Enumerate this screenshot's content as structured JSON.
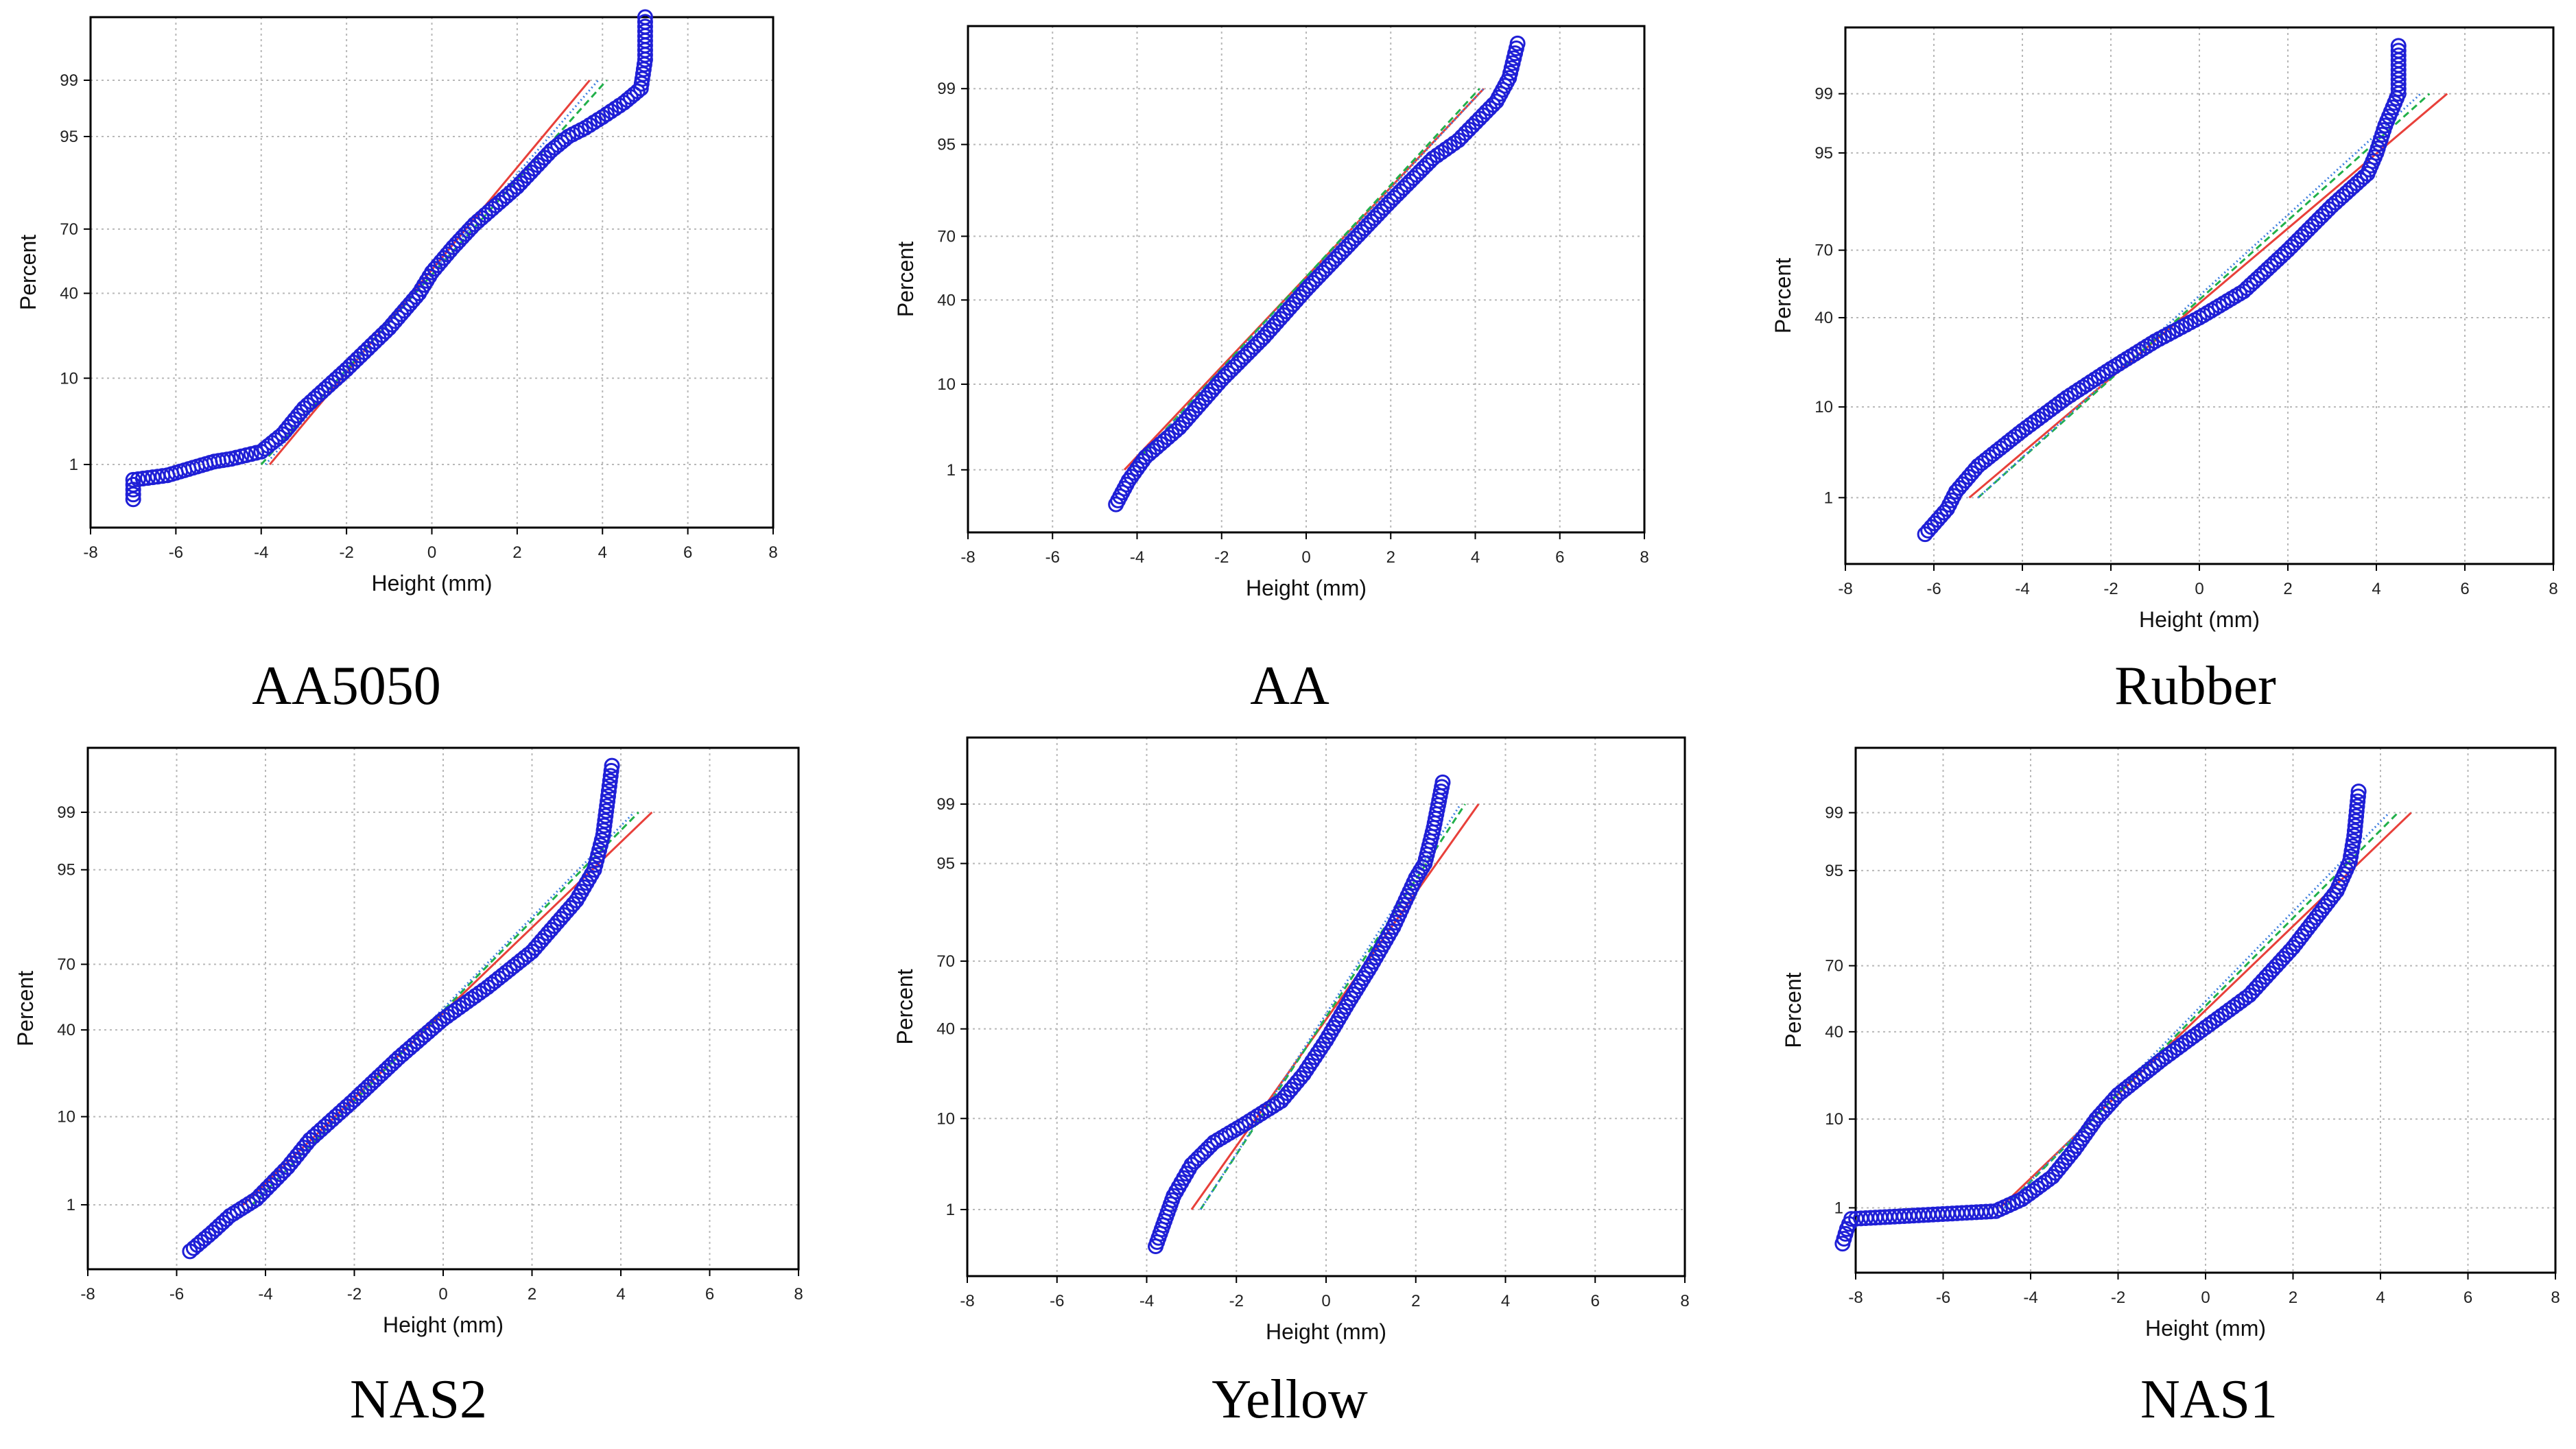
{
  "figure": {
    "panels": [
      {
        "caption": "AA5050"
      },
      {
        "caption": "AA"
      },
      {
        "caption": "Rubber"
      },
      {
        "caption": "NAS2"
      },
      {
        "caption": "Yellow"
      },
      {
        "caption": "NAS1"
      }
    ]
  },
  "colors": {
    "points": "#1f1fd6",
    "fit_red": "#e8403a",
    "fit_green": "#21b04a",
    "fit_blue": "#3f7fe0",
    "grid": "#b8b8b8",
    "frame": "#000000"
  },
  "chart_data": [
    {
      "type": "scatter",
      "title": "AA5050",
      "xlabel": "Height (mm)",
      "ylabel": "Percent",
      "xlim": [
        -8,
        8
      ],
      "xticks": [
        -8,
        -6,
        -4,
        -2,
        0,
        2,
        4,
        6,
        8
      ],
      "yticks": [
        1,
        10,
        40,
        70,
        95,
        99
      ],
      "grid": true,
      "points": [
        [
          -7.0,
          0.3
        ],
        [
          -7.0,
          0.6
        ],
        [
          -6.2,
          0.7
        ],
        [
          -5.6,
          0.9
        ],
        [
          -5.1,
          1.1
        ],
        [
          -4.7,
          1.2
        ],
        [
          -4.0,
          1.5
        ],
        [
          -3.5,
          2.5
        ],
        [
          -3,
          5
        ],
        [
          -2,
          12
        ],
        [
          -1,
          25
        ],
        [
          -0.3,
          40
        ],
        [
          0,
          50
        ],
        [
          0.5,
          62
        ],
        [
          1,
          72
        ],
        [
          2,
          85
        ],
        [
          2.8,
          93
        ],
        [
          3.2,
          95
        ],
        [
          3.6,
          96
        ],
        [
          4.0,
          97
        ],
        [
          4.5,
          98
        ],
        [
          4.9,
          98.7
        ],
        [
          5.0,
          99.5
        ],
        [
          5.0,
          99.9
        ]
      ],
      "fit_lines": [
        {
          "color": "red",
          "x": [
            -3.8,
            3.7
          ],
          "p": [
            1,
            99
          ]
        },
        {
          "color": "green",
          "x": [
            -4.0,
            4.1
          ],
          "p": [
            1,
            99
          ]
        },
        {
          "color": "blue",
          "x": [
            -3.9,
            3.9
          ],
          "p": [
            1,
            99
          ]
        }
      ]
    },
    {
      "type": "scatter",
      "title": "AA",
      "xlabel": "Height (mm)",
      "ylabel": "Percent",
      "xlim": [
        -8,
        8
      ],
      "xticks": [
        -8,
        -6,
        -4,
        -2,
        0,
        2,
        4,
        6,
        8
      ],
      "yticks": [
        1,
        10,
        40,
        70,
        95,
        99
      ],
      "grid": true,
      "points": [
        [
          -4.5,
          0.3
        ],
        [
          -4.2,
          0.7
        ],
        [
          -3.8,
          1.5
        ],
        [
          -3.0,
          3.5
        ],
        [
          -2,
          11
        ],
        [
          -1,
          24
        ],
        [
          0,
          45
        ],
        [
          1,
          66
        ],
        [
          2,
          83
        ],
        [
          3,
          93
        ],
        [
          3.6,
          95.5
        ],
        [
          4.1,
          97.5
        ],
        [
          4.5,
          98.5
        ],
        [
          4.8,
          99.3
        ],
        [
          5.0,
          99.8
        ]
      ],
      "fit_lines": [
        {
          "color": "red",
          "x": [
            -4.3,
            4.2
          ],
          "p": [
            1,
            99
          ]
        },
        {
          "color": "green",
          "x": [
            -4.2,
            4.1
          ],
          "p": [
            1,
            99
          ]
        },
        {
          "color": "blue",
          "x": [
            -4.2,
            4.2
          ],
          "p": [
            1,
            99
          ]
        }
      ]
    },
    {
      "type": "scatter",
      "title": "Rubber",
      "xlabel": "Height (mm)",
      "ylabel": "Percent",
      "xlim": [
        -8,
        8
      ],
      "xticks": [
        -8,
        -6,
        -4,
        -2,
        0,
        2,
        4,
        6,
        8
      ],
      "yticks": [
        1,
        10,
        40,
        70,
        95,
        99
      ],
      "grid": true,
      "points": [
        [
          -6.2,
          0.3
        ],
        [
          -5.7,
          0.7
        ],
        [
          -5.5,
          1.2
        ],
        [
          -5,
          2.5
        ],
        [
          -4,
          6
        ],
        [
          -3,
          12
        ],
        [
          -2,
          20
        ],
        [
          -1,
          30
        ],
        [
          0,
          40
        ],
        [
          1,
          52
        ],
        [
          2,
          70
        ],
        [
          3,
          85
        ],
        [
          3.8,
          92
        ],
        [
          4.0,
          95
        ],
        [
          4.2,
          97.5
        ],
        [
          4.5,
          99
        ],
        [
          4.5,
          99.8
        ]
      ],
      "fit_lines": [
        {
          "color": "red",
          "x": [
            -5.2,
            5.6
          ],
          "p": [
            1,
            99
          ]
        },
        {
          "color": "green",
          "x": [
            -5.0,
            5.2
          ],
          "p": [
            1,
            99
          ]
        },
        {
          "color": "blue",
          "x": [
            -5.0,
            5.0
          ],
          "p": [
            1,
            99
          ]
        }
      ]
    },
    {
      "type": "scatter",
      "title": "NAS2",
      "xlabel": "Height (mm)",
      "ylabel": "Percent",
      "xlim": [
        -8,
        8
      ],
      "xticks": [
        -8,
        -6,
        -4,
        -2,
        0,
        2,
        4,
        6,
        8
      ],
      "yticks": [
        1,
        10,
        40,
        70,
        95,
        99
      ],
      "grid": true,
      "points": [
        [
          -5.7,
          0.2
        ],
        [
          -5.2,
          0.4
        ],
        [
          -4.8,
          0.7
        ],
        [
          -4.2,
          1.2
        ],
        [
          -3.5,
          3
        ],
        [
          -3,
          6
        ],
        [
          -2,
          14
        ],
        [
          -1,
          28
        ],
        [
          0,
          45
        ],
        [
          1,
          60
        ],
        [
          2,
          75
        ],
        [
          3,
          90
        ],
        [
          3.4,
          95
        ],
        [
          3.6,
          98
        ],
        [
          3.7,
          99.3
        ],
        [
          3.8,
          99.8
        ]
      ],
      "fit_lines": [
        {
          "color": "red",
          "x": [
            -4.5,
            4.7
          ],
          "p": [
            1,
            99
          ]
        },
        {
          "color": "green",
          "x": [
            -4.3,
            4.4
          ],
          "p": [
            1,
            99
          ]
        },
        {
          "color": "blue",
          "x": [
            -4.3,
            4.3
          ],
          "p": [
            1,
            99
          ]
        }
      ]
    },
    {
      "type": "scatter",
      "title": "Yellow",
      "xlabel": "Height (mm)",
      "ylabel": "Percent",
      "xlim": [
        -8,
        8
      ],
      "xticks": [
        -8,
        -6,
        -4,
        -2,
        0,
        2,
        4,
        6,
        8
      ],
      "yticks": [
        1,
        10,
        40,
        70,
        95,
        99
      ],
      "grid": true,
      "points": [
        [
          -3.8,
          0.3
        ],
        [
          -3.6,
          0.7
        ],
        [
          -3.4,
          1.5
        ],
        [
          -3.0,
          3.5
        ],
        [
          -2.5,
          6
        ],
        [
          -1.8,
          9
        ],
        [
          -1.0,
          14
        ],
        [
          -0.5,
          22
        ],
        [
          0,
          35
        ],
        [
          0.5,
          52
        ],
        [
          1,
          68
        ],
        [
          1.5,
          82
        ],
        [
          2,
          93
        ],
        [
          2.2,
          95
        ],
        [
          2.4,
          98
        ],
        [
          2.6,
          99.5
        ]
      ],
      "fit_lines": [
        {
          "color": "red",
          "x": [
            -3.0,
            3.4
          ],
          "p": [
            1,
            99
          ]
        },
        {
          "color": "green",
          "x": [
            -2.8,
            3.1
          ],
          "p": [
            1,
            99
          ]
        },
        {
          "color": "blue",
          "x": [
            -2.8,
            3.0
          ],
          "p": [
            1,
            99
          ]
        }
      ]
    },
    {
      "type": "scatter",
      "title": "NAS1",
      "xlabel": "Height (mm)",
      "ylabel": "Percent",
      "xlim": [
        -8,
        8
      ],
      "xticks": [
        -8,
        -6,
        -4,
        -2,
        0,
        2,
        4,
        6,
        8
      ],
      "yticks": [
        1,
        10,
        40,
        70,
        95,
        99
      ],
      "grid": true,
      "points": [
        [
          -8.3,
          0.3
        ],
        [
          -8.2,
          0.5
        ],
        [
          -8.1,
          0.7
        ],
        [
          -4.8,
          0.9
        ],
        [
          -4.2,
          1.3
        ],
        [
          -3.5,
          2.5
        ],
        [
          -3.0,
          5
        ],
        [
          -2.5,
          10
        ],
        [
          -2,
          16
        ],
        [
          -1,
          28
        ],
        [
          0,
          42
        ],
        [
          1,
          57
        ],
        [
          2,
          77
        ],
        [
          3,
          92
        ],
        [
          3.3,
          96
        ],
        [
          3.4,
          98
        ],
        [
          3.5,
          99.5
        ]
      ],
      "fit_lines": [
        {
          "color": "red",
          "x": [
            -4.7,
            4.7
          ],
          "p": [
            1,
            99
          ]
        },
        {
          "color": "green",
          "x": [
            -4.6,
            4.4
          ],
          "p": [
            1,
            99
          ]
        },
        {
          "color": "blue",
          "x": [
            -4.6,
            4.2
          ],
          "p": [
            1,
            99
          ]
        }
      ]
    }
  ]
}
